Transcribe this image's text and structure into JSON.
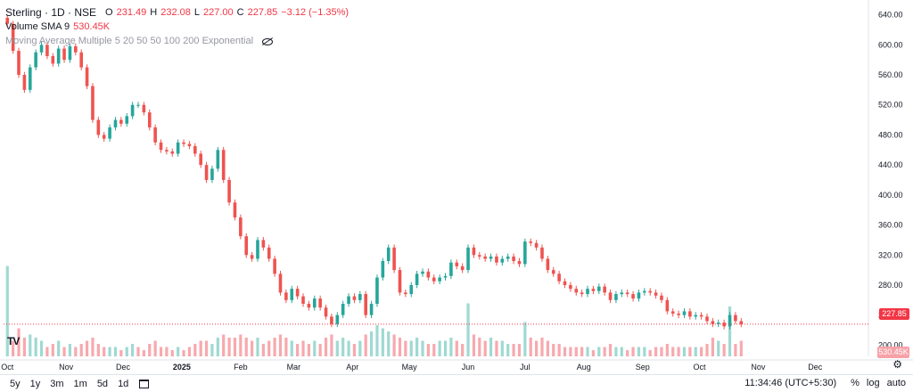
{
  "header": {
    "symbol": "Sterling · 1D · NSE",
    "o_label": "O",
    "o_value": "231.49",
    "h_label": "H",
    "h_value": "232.08",
    "l_label": "L",
    "l_value": "227.00",
    "c_label": "C",
    "c_value": "227.85",
    "change": "−3.12 (−1.35%)",
    "volume_label": "Volume SMA 9",
    "volume_value": "530.45K",
    "ma_label": "Moving Average Multiple 5 20 50 50 100 200 Exponential"
  },
  "price_tag": "227.85",
  "volume_tag": "530.45K",
  "bottom": {
    "ranges": [
      "5y",
      "1y",
      "3m",
      "1m",
      "5d",
      "1d"
    ],
    "time": "11:34:46 (UTC+5:30)",
    "percent": "%",
    "log": "log",
    "auto": "auto"
  },
  "colors": {
    "up": "#26a69a",
    "down": "#ef5350",
    "vol_up": "#9fd9d2",
    "vol_down": "#f7a9ae",
    "last_price_line": "#f23645"
  },
  "chart_data": {
    "type": "candlestick",
    "symbol": "Sterling",
    "interval": "1D",
    "exchange": "NSE",
    "y_ticks": [
      640,
      600,
      560,
      520,
      480,
      440,
      400,
      360,
      320,
      280,
      240,
      200
    ],
    "ylim": [
      185,
      655
    ],
    "x_ticks": [
      "Oct",
      "Nov",
      "Dec",
      "2025",
      "Feb",
      "Mar",
      "Apr",
      "May",
      "Jun",
      "Jul",
      "Aug",
      "Sep",
      "Oct",
      "Nov",
      "Dec"
    ],
    "x_tick_days": [
      0,
      31,
      61,
      92,
      123,
      151,
      182,
      212,
      243,
      273,
      304,
      335,
      365,
      396,
      426
    ],
    "xlim_days": [
      -2,
      440
    ],
    "last_close": 227.85,
    "closes": [
      {
        "d": 0,
        "c": 628
      },
      {
        "d": 3,
        "c": 592
      },
      {
        "d": 6,
        "c": 560
      },
      {
        "d": 9,
        "c": 540
      },
      {
        "d": 12,
        "c": 570
      },
      {
        "d": 15,
        "c": 590
      },
      {
        "d": 18,
        "c": 600
      },
      {
        "d": 21,
        "c": 585
      },
      {
        "d": 24,
        "c": 575
      },
      {
        "d": 27,
        "c": 595
      },
      {
        "d": 30,
        "c": 580
      },
      {
        "d": 33,
        "c": 598
      },
      {
        "d": 36,
        "c": 590
      },
      {
        "d": 39,
        "c": 570
      },
      {
        "d": 42,
        "c": 545
      },
      {
        "d": 45,
        "c": 500
      },
      {
        "d": 48,
        "c": 480
      },
      {
        "d": 51,
        "c": 475
      },
      {
        "d": 54,
        "c": 490
      },
      {
        "d": 57,
        "c": 500
      },
      {
        "d": 60,
        "c": 495
      },
      {
        "d": 63,
        "c": 505
      },
      {
        "d": 66,
        "c": 520
      },
      {
        "d": 69,
        "c": 520
      },
      {
        "d": 72,
        "c": 510
      },
      {
        "d": 75,
        "c": 490
      },
      {
        "d": 78,
        "c": 470
      },
      {
        "d": 81,
        "c": 460
      },
      {
        "d": 84,
        "c": 458
      },
      {
        "d": 87,
        "c": 455
      },
      {
        "d": 90,
        "c": 470
      },
      {
        "d": 93,
        "c": 468
      },
      {
        "d": 96,
        "c": 465
      },
      {
        "d": 99,
        "c": 455
      },
      {
        "d": 102,
        "c": 440
      },
      {
        "d": 105,
        "c": 420
      },
      {
        "d": 108,
        "c": 435
      },
      {
        "d": 111,
        "c": 460
      },
      {
        "d": 114,
        "c": 420
      },
      {
        "d": 117,
        "c": 390
      },
      {
        "d": 120,
        "c": 370
      },
      {
        "d": 123,
        "c": 345
      },
      {
        "d": 126,
        "c": 320
      },
      {
        "d": 129,
        "c": 315
      },
      {
        "d": 132,
        "c": 340
      },
      {
        "d": 135,
        "c": 330
      },
      {
        "d": 138,
        "c": 315
      },
      {
        "d": 141,
        "c": 295
      },
      {
        "d": 144,
        "c": 270
      },
      {
        "d": 147,
        "c": 260
      },
      {
        "d": 150,
        "c": 275
      },
      {
        "d": 153,
        "c": 265
      },
      {
        "d": 156,
        "c": 255
      },
      {
        "d": 159,
        "c": 250
      },
      {
        "d": 162,
        "c": 262
      },
      {
        "d": 165,
        "c": 250
      },
      {
        "d": 168,
        "c": 238
      },
      {
        "d": 171,
        "c": 228
      },
      {
        "d": 174,
        "c": 240
      },
      {
        "d": 177,
        "c": 255
      },
      {
        "d": 180,
        "c": 265
      },
      {
        "d": 183,
        "c": 260
      },
      {
        "d": 186,
        "c": 268
      },
      {
        "d": 189,
        "c": 240
      },
      {
        "d": 192,
        "c": 255
      },
      {
        "d": 195,
        "c": 290
      },
      {
        "d": 198,
        "c": 312
      },
      {
        "d": 201,
        "c": 330
      },
      {
        "d": 204,
        "c": 300
      },
      {
        "d": 207,
        "c": 270
      },
      {
        "d": 210,
        "c": 268
      },
      {
        "d": 213,
        "c": 280
      },
      {
        "d": 216,
        "c": 295
      },
      {
        "d": 219,
        "c": 298
      },
      {
        "d": 222,
        "c": 290
      },
      {
        "d": 225,
        "c": 285
      },
      {
        "d": 228,
        "c": 290
      },
      {
        "d": 231,
        "c": 292
      },
      {
        "d": 234,
        "c": 310
      },
      {
        "d": 237,
        "c": 305
      },
      {
        "d": 240,
        "c": 300
      },
      {
        "d": 243,
        "c": 330
      },
      {
        "d": 246,
        "c": 320
      },
      {
        "d": 249,
        "c": 318
      },
      {
        "d": 252,
        "c": 315
      },
      {
        "d": 255,
        "c": 318
      },
      {
        "d": 258,
        "c": 310
      },
      {
        "d": 261,
        "c": 315
      },
      {
        "d": 264,
        "c": 318
      },
      {
        "d": 267,
        "c": 312
      },
      {
        "d": 270,
        "c": 308
      },
      {
        "d": 273,
        "c": 338
      },
      {
        "d": 276,
        "c": 336
      },
      {
        "d": 279,
        "c": 330
      },
      {
        "d": 282,
        "c": 315
      },
      {
        "d": 285,
        "c": 300
      },
      {
        "d": 288,
        "c": 295
      },
      {
        "d": 291,
        "c": 285
      },
      {
        "d": 294,
        "c": 280
      },
      {
        "d": 297,
        "c": 275
      },
      {
        "d": 300,
        "c": 270
      },
      {
        "d": 303,
        "c": 268
      },
      {
        "d": 306,
        "c": 275
      },
      {
        "d": 309,
        "c": 272
      },
      {
        "d": 312,
        "c": 278
      },
      {
        "d": 315,
        "c": 270
      },
      {
        "d": 318,
        "c": 260
      },
      {
        "d": 321,
        "c": 268
      },
      {
        "d": 324,
        "c": 270
      },
      {
        "d": 327,
        "c": 268
      },
      {
        "d": 330,
        "c": 262
      },
      {
        "d": 333,
        "c": 270
      },
      {
        "d": 336,
        "c": 272
      },
      {
        "d": 339,
        "c": 270
      },
      {
        "d": 342,
        "c": 266
      },
      {
        "d": 345,
        "c": 260
      },
      {
        "d": 348,
        "c": 245
      },
      {
        "d": 351,
        "c": 242
      },
      {
        "d": 354,
        "c": 240
      },
      {
        "d": 357,
        "c": 245
      },
      {
        "d": 360,
        "c": 238
      },
      {
        "d": 363,
        "c": 240
      },
      {
        "d": 366,
        "c": 238
      },
      {
        "d": 369,
        "c": 232
      },
      {
        "d": 372,
        "c": 228
      },
      {
        "d": 375,
        "c": 230
      },
      {
        "d": 378,
        "c": 225
      },
      {
        "d": 381,
        "c": 240
      },
      {
        "d": 384,
        "c": 232
      },
      {
        "d": 387,
        "c": 227.85
      }
    ],
    "volumes": [
      {
        "d": 0,
        "v": 2.9,
        "up": true
      },
      {
        "d": 3,
        "v": 0.5,
        "up": false
      },
      {
        "d": 6,
        "v": 0.9,
        "up": false
      },
      {
        "d": 9,
        "v": 0.6,
        "up": false
      },
      {
        "d": 12,
        "v": 0.7,
        "up": true
      },
      {
        "d": 15,
        "v": 0.6,
        "up": true
      },
      {
        "d": 18,
        "v": 0.5,
        "up": true
      },
      {
        "d": 21,
        "v": 0.3,
        "up": false
      },
      {
        "d": 24,
        "v": 0.4,
        "up": false
      },
      {
        "d": 27,
        "v": 0.5,
        "up": true
      },
      {
        "d": 30,
        "v": 0.3,
        "up": false
      },
      {
        "d": 33,
        "v": 0.4,
        "up": true
      },
      {
        "d": 36,
        "v": 0.3,
        "up": false
      },
      {
        "d": 39,
        "v": 0.4,
        "up": false
      },
      {
        "d": 42,
        "v": 0.5,
        "up": false
      },
      {
        "d": 45,
        "v": 0.6,
        "up": false
      },
      {
        "d": 48,
        "v": 0.4,
        "up": false
      },
      {
        "d": 51,
        "v": 0.3,
        "up": false
      },
      {
        "d": 54,
        "v": 0.3,
        "up": true
      },
      {
        "d": 57,
        "v": 0.3,
        "up": true
      },
      {
        "d": 60,
        "v": 0.2,
        "up": false
      },
      {
        "d": 63,
        "v": 0.3,
        "up": true
      },
      {
        "d": 66,
        "v": 0.4,
        "up": true
      },
      {
        "d": 69,
        "v": 0.3,
        "up": false
      },
      {
        "d": 72,
        "v": 0.2,
        "up": false
      },
      {
        "d": 75,
        "v": 0.4,
        "up": false
      },
      {
        "d": 78,
        "v": 0.5,
        "up": false
      },
      {
        "d": 81,
        "v": 0.3,
        "up": false
      },
      {
        "d": 84,
        "v": 0.3,
        "up": false
      },
      {
        "d": 87,
        "v": 0.2,
        "up": false
      },
      {
        "d": 90,
        "v": 0.3,
        "up": true
      },
      {
        "d": 93,
        "v": 0.2,
        "up": false
      },
      {
        "d": 96,
        "v": 0.3,
        "up": false
      },
      {
        "d": 99,
        "v": 0.4,
        "up": false
      },
      {
        "d": 102,
        "v": 0.5,
        "up": false
      },
      {
        "d": 105,
        "v": 0.5,
        "up": false
      },
      {
        "d": 108,
        "v": 0.4,
        "up": true
      },
      {
        "d": 111,
        "v": 0.6,
        "up": true
      },
      {
        "d": 114,
        "v": 0.7,
        "up": false
      },
      {
        "d": 117,
        "v": 0.6,
        "up": false
      },
      {
        "d": 120,
        "v": 0.6,
        "up": false
      },
      {
        "d": 123,
        "v": 0.7,
        "up": false
      },
      {
        "d": 126,
        "v": 0.6,
        "up": false
      },
      {
        "d": 129,
        "v": 0.5,
        "up": false
      },
      {
        "d": 132,
        "v": 0.6,
        "up": true
      },
      {
        "d": 135,
        "v": 0.4,
        "up": false
      },
      {
        "d": 138,
        "v": 0.5,
        "up": false
      },
      {
        "d": 141,
        "v": 0.6,
        "up": false
      },
      {
        "d": 144,
        "v": 0.7,
        "up": false
      },
      {
        "d": 147,
        "v": 0.6,
        "up": false
      },
      {
        "d": 150,
        "v": 0.5,
        "up": true
      },
      {
        "d": 153,
        "v": 0.4,
        "up": false
      },
      {
        "d": 156,
        "v": 0.5,
        "up": false
      },
      {
        "d": 159,
        "v": 0.4,
        "up": false
      },
      {
        "d": 162,
        "v": 0.5,
        "up": true
      },
      {
        "d": 165,
        "v": 0.4,
        "up": false
      },
      {
        "d": 168,
        "v": 0.6,
        "up": false
      },
      {
        "d": 171,
        "v": 0.7,
        "up": false
      },
      {
        "d": 174,
        "v": 0.5,
        "up": true
      },
      {
        "d": 177,
        "v": 0.6,
        "up": true
      },
      {
        "d": 180,
        "v": 0.5,
        "up": true
      },
      {
        "d": 183,
        "v": 0.4,
        "up": false
      },
      {
        "d": 186,
        "v": 0.5,
        "up": true
      },
      {
        "d": 189,
        "v": 0.7,
        "up": false
      },
      {
        "d": 192,
        "v": 0.8,
        "up": true
      },
      {
        "d": 195,
        "v": 1.0,
        "up": true
      },
      {
        "d": 198,
        "v": 0.9,
        "up": true
      },
      {
        "d": 201,
        "v": 0.8,
        "up": true
      },
      {
        "d": 204,
        "v": 0.7,
        "up": false
      },
      {
        "d": 207,
        "v": 0.6,
        "up": false
      },
      {
        "d": 210,
        "v": 0.5,
        "up": false
      },
      {
        "d": 213,
        "v": 0.5,
        "up": true
      },
      {
        "d": 216,
        "v": 0.6,
        "up": true
      },
      {
        "d": 219,
        "v": 0.5,
        "up": true
      },
      {
        "d": 222,
        "v": 0.4,
        "up": false
      },
      {
        "d": 225,
        "v": 0.4,
        "up": false
      },
      {
        "d": 228,
        "v": 0.5,
        "up": true
      },
      {
        "d": 231,
        "v": 0.5,
        "up": true
      },
      {
        "d": 234,
        "v": 0.6,
        "up": true
      },
      {
        "d": 237,
        "v": 0.5,
        "up": false
      },
      {
        "d": 240,
        "v": 0.4,
        "up": false
      },
      {
        "d": 243,
        "v": 1.7,
        "up": true
      },
      {
        "d": 246,
        "v": 0.7,
        "up": false
      },
      {
        "d": 249,
        "v": 0.6,
        "up": false
      },
      {
        "d": 252,
        "v": 0.5,
        "up": false
      },
      {
        "d": 255,
        "v": 0.6,
        "up": true
      },
      {
        "d": 258,
        "v": 0.5,
        "up": false
      },
      {
        "d": 261,
        "v": 0.5,
        "up": true
      },
      {
        "d": 264,
        "v": 0.4,
        "up": true
      },
      {
        "d": 267,
        "v": 0.4,
        "up": false
      },
      {
        "d": 270,
        "v": 0.4,
        "up": false
      },
      {
        "d": 273,
        "v": 1.1,
        "up": true
      },
      {
        "d": 276,
        "v": 0.6,
        "up": false
      },
      {
        "d": 279,
        "v": 0.5,
        "up": false
      },
      {
        "d": 282,
        "v": 0.6,
        "up": false
      },
      {
        "d": 285,
        "v": 0.5,
        "up": false
      },
      {
        "d": 288,
        "v": 0.4,
        "up": false
      },
      {
        "d": 291,
        "v": 0.4,
        "up": false
      },
      {
        "d": 294,
        "v": 0.3,
        "up": false
      },
      {
        "d": 297,
        "v": 0.3,
        "up": false
      },
      {
        "d": 300,
        "v": 0.3,
        "up": false
      },
      {
        "d": 303,
        "v": 0.3,
        "up": false
      },
      {
        "d": 306,
        "v": 0.3,
        "up": true
      },
      {
        "d": 309,
        "v": 0.2,
        "up": false
      },
      {
        "d": 312,
        "v": 0.3,
        "up": true
      },
      {
        "d": 315,
        "v": 0.3,
        "up": false
      },
      {
        "d": 318,
        "v": 0.4,
        "up": false
      },
      {
        "d": 321,
        "v": 0.3,
        "up": true
      },
      {
        "d": 324,
        "v": 0.3,
        "up": true
      },
      {
        "d": 327,
        "v": 0.2,
        "up": false
      },
      {
        "d": 330,
        "v": 0.3,
        "up": false
      },
      {
        "d": 333,
        "v": 0.3,
        "up": true
      },
      {
        "d": 336,
        "v": 0.3,
        "up": true
      },
      {
        "d": 339,
        "v": 0.2,
        "up": false
      },
      {
        "d": 342,
        "v": 0.3,
        "up": false
      },
      {
        "d": 345,
        "v": 0.3,
        "up": false
      },
      {
        "d": 348,
        "v": 0.4,
        "up": false
      },
      {
        "d": 351,
        "v": 0.3,
        "up": false
      },
      {
        "d": 354,
        "v": 0.3,
        "up": false
      },
      {
        "d": 357,
        "v": 0.3,
        "up": true
      },
      {
        "d": 360,
        "v": 0.3,
        "up": false
      },
      {
        "d": 363,
        "v": 0.3,
        "up": true
      },
      {
        "d": 366,
        "v": 0.3,
        "up": false
      },
      {
        "d": 369,
        "v": 0.4,
        "up": false
      },
      {
        "d": 372,
        "v": 0.6,
        "up": false
      },
      {
        "d": 375,
        "v": 0.5,
        "up": true
      },
      {
        "d": 378,
        "v": 0.4,
        "up": false
      },
      {
        "d": 381,
        "v": 1.6,
        "up": true
      },
      {
        "d": 384,
        "v": 0.4,
        "up": false
      },
      {
        "d": 387,
        "v": 0.5,
        "up": false
      }
    ]
  }
}
